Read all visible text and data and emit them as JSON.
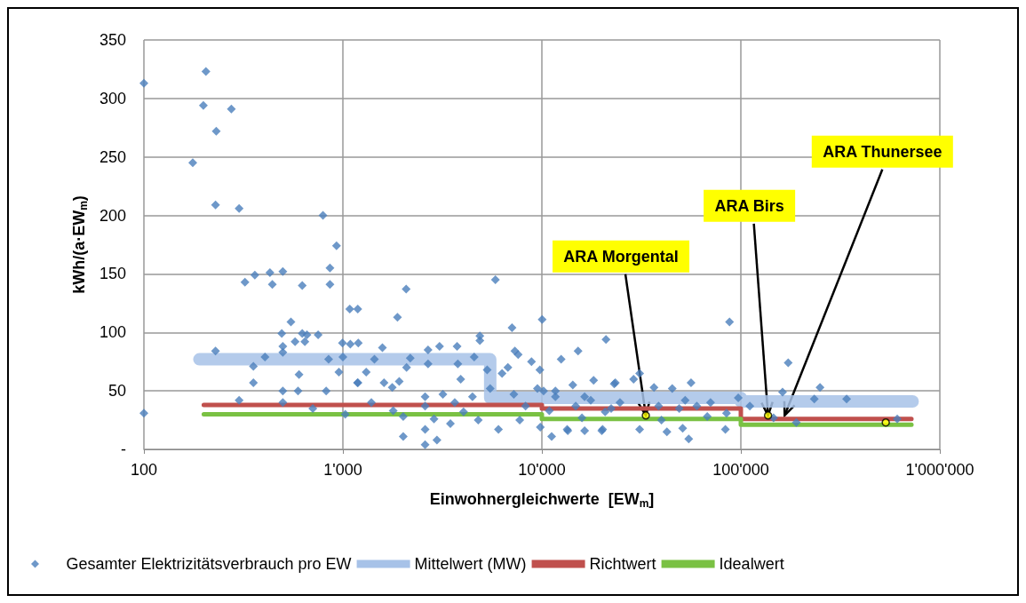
{
  "chart_data": {
    "type": "scatter",
    "xlabel": "Einwohnergleichwerte  [EW$_{m}$]",
    "ylabel": "kWh/(a·EW$_{m}$)",
    "log": "x",
    "grid": true,
    "legend": "bottom",
    "xlim": [
      100,
      1000000
    ],
    "xticks": [
      {
        "value": 100,
        "label": "100"
      },
      {
        "value": 1000,
        "label": "1'000"
      },
      {
        "value": 10000,
        "label": "10'000"
      },
      {
        "value": 100000,
        "label": "100'000"
      },
      {
        "value": 1000000,
        "label": "1'000'000"
      }
    ],
    "ylim": [
      0,
      350
    ],
    "yticks": [
      {
        "value": 0,
        "label": "-"
      },
      50,
      100,
      150,
      200,
      250,
      300,
      350
    ],
    "series": [
      {
        "name": "Gesamter Elektrizitätsverbrauch pro EW",
        "marker": "diamond",
        "color": "#4a7ebb",
        "x": [
          100,
          100,
          176,
          199,
          205,
          231,
          229,
          229,
          275,
          301,
          301,
          322,
          361,
          355,
          355,
          406,
          430,
          442,
          499,
          493,
          499,
          499,
          499,
          499,
          548,
          575,
          602,
          595,
          625,
          625,
          660,
          644,
          706,
          751,
          794,
          824,
          848,
          861,
          861,
          929,
          955,
          1000,
          995,
          1028,
          1083,
          1188,
          1090,
          1195,
          1184,
          5840,
          2080,
          1880,
          10030,
          7080,
          4880,
          4880,
          21000,
          15200,
          1580,
          3750,
          3060,
          2680,
          7320,
          7600,
          12500,
          1440,
          8870,
          2180,
          4570,
          9770,
          2680,
          1310,
          1190,
          1610,
          1770,
          2090,
          1920,
          1390,
          1790,
          2010,
          2010,
          2590,
          2590,
          2970,
          2590,
          2590,
          2870,
          3470,
          3180,
          3780,
          3910,
          3650,
          4040,
          4480,
          4790,
          5310,
          5500,
          6050,
          6310,
          6750,
          7230,
          7740,
          8280,
          9500,
          9820,
          10900,
          11200,
          11700,
          13400,
          14300,
          16400,
          18200,
          20200,
          23100,
          22300,
          15900,
          87700,
          173000,
          250000,
          162000,
          234000,
          340000,
          111000,
          97000,
          146000,
          190000,
          611000,
          56200,
          36600,
          45200,
          28900,
          31000,
          23400,
          70400,
          84700,
          83600,
          54700,
          42500,
          51000,
          31000,
          20000,
          13500,
          16400,
          67800,
          60100,
          49000,
          38600,
          39900,
          24700,
          20800,
          17600,
          14800,
          11700,
          10200,
          52500
        ],
        "values": [
          313,
          31,
          245,
          294,
          323,
          272,
          209,
          84,
          291,
          206,
          42,
          143,
          149,
          71,
          57,
          79,
          151,
          141,
          152,
          99,
          88,
          83,
          50,
          40,
          109,
          92,
          64,
          50,
          140,
          99,
          98,
          92,
          35,
          98,
          200,
          50,
          77,
          155,
          141,
          174,
          66,
          79,
          91,
          30,
          120,
          120,
          90,
          91,
          57,
          145,
          137,
          113,
          111,
          104,
          97,
          93,
          94,
          84,
          87,
          88,
          88,
          85,
          84,
          81,
          77,
          77,
          75,
          78,
          79,
          68,
          73,
          66,
          57,
          57,
          53,
          70,
          58,
          40,
          33,
          28,
          11,
          17,
          4,
          8,
          45,
          37,
          26,
          22,
          47,
          73,
          60,
          40,
          32,
          45,
          25,
          68,
          52,
          17,
          65,
          70,
          47,
          25,
          37,
          52,
          19,
          33,
          11,
          50,
          17,
          55,
          45,
          59,
          17,
          56,
          35,
          27,
          109,
          74,
          53,
          49,
          43,
          43,
          37,
          44,
          27,
          23,
          26,
          57,
          53,
          52,
          60,
          65,
          57,
          40,
          31,
          17,
          9,
          15,
          18,
          17,
          16,
          16,
          16,
          28,
          37,
          35,
          37,
          25,
          40,
          32,
          42,
          37,
          45,
          50,
          42
        ]
      },
      {
        "name": "Mittelwert (MW)",
        "type": "line",
        "marker": "none",
        "color": "#a7c2e8",
        "x": [
          190,
          5500,
          5500,
          100000,
          100000,
          730000
        ],
        "values": [
          77,
          77,
          44,
          44,
          41,
          41
        ]
      },
      {
        "name": "Richtwert",
        "type": "line",
        "marker": "none",
        "color": "#c0504d",
        "x": [
          200,
          10000,
          10000,
          100000,
          100000,
          720000
        ],
        "values": [
          38,
          38,
          35,
          35,
          26,
          26
        ]
      },
      {
        "name": "Idealwert",
        "type": "line",
        "marker": "none",
        "color": "#7ac143",
        "x": [
          200,
          10000,
          10000,
          100000,
          100000,
          720000
        ],
        "values": [
          30,
          30,
          26,
          26,
          21,
          21
        ]
      },
      {
        "type": "scatter",
        "marker": "circle",
        "color": "#ffff00",
        "x": [
          33300,
          137000,
          535000
        ],
        "values": [
          29,
          29,
          23
        ]
      }
    ],
    "annotations": [
      {
        "text": "ARA Morgental",
        "x": 33300,
        "y": 29
      },
      {
        "text": "ARA Birs",
        "x": 137000,
        "y": 29
      },
      {
        "text": "ARA Thunersee",
        "x": 166000,
        "y": 29
      }
    ]
  }
}
